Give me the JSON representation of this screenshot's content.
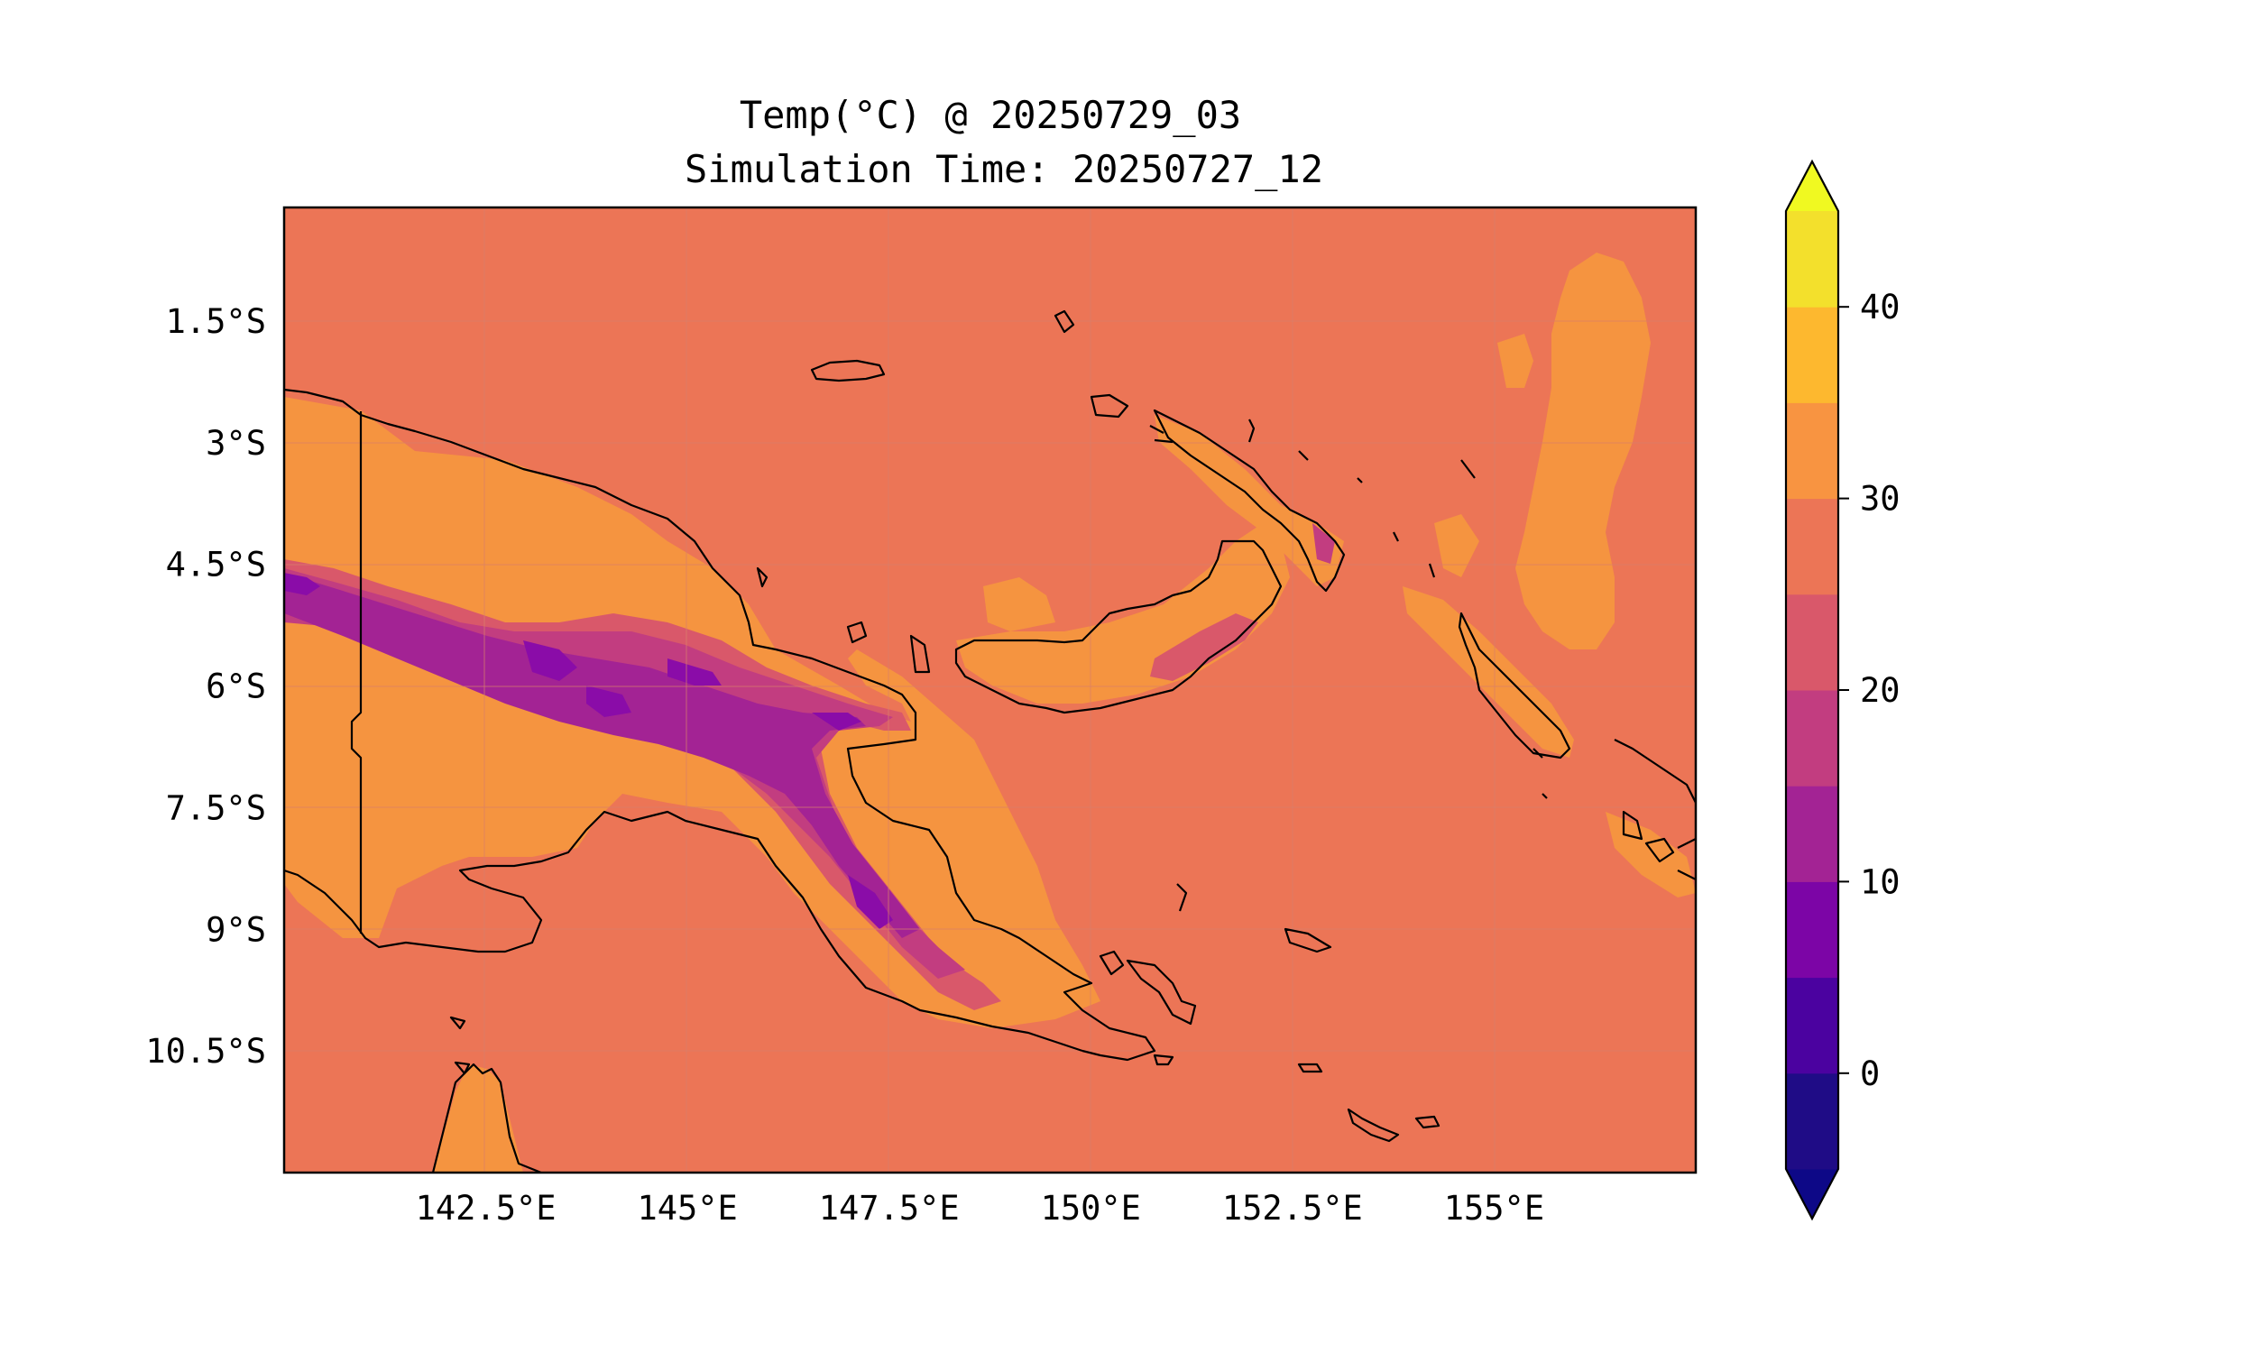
{
  "chart_data": {
    "type": "heatmap",
    "title": "Temp(°C) @ 20250729_03",
    "subtitle": "Simulation Time: 20250727_12",
    "xlabel": "",
    "ylabel": "",
    "xlim": [
      140.0,
      157.5
    ],
    "ylim": [
      -12.0,
      -0.1
    ],
    "x_ticks": [
      {
        "value": 142.5,
        "label": "142.5°E"
      },
      {
        "value": 145.0,
        "label": "145°E"
      },
      {
        "value": 147.5,
        "label": "147.5°E"
      },
      {
        "value": 150.0,
        "label": "150°E"
      },
      {
        "value": 152.5,
        "label": "152.5°E"
      },
      {
        "value": 155.0,
        "label": "155°E"
      }
    ],
    "y_ticks": [
      {
        "value": -1.5,
        "label": "1.5°S"
      },
      {
        "value": -3.0,
        "label": "3°S"
      },
      {
        "value": -4.5,
        "label": "4.5°S"
      },
      {
        "value": -6.0,
        "label": "6°S"
      },
      {
        "value": -7.5,
        "label": "7.5°S"
      },
      {
        "value": -9.0,
        "label": "9°S"
      },
      {
        "value": -10.5,
        "label": "10.5°S"
      }
    ],
    "grid": true,
    "colorbar": {
      "position": "right",
      "extend": "both",
      "levels": [
        -5,
        0,
        5,
        10,
        15,
        20,
        25,
        30,
        35,
        40,
        45
      ],
      "colors": [
        "#1f0c86",
        "#4b02a0",
        "#7c05a6",
        "#a32394",
        "#c23d80",
        "#d9586a",
        "#ec7556",
        "#f89441",
        "#fdb82f",
        "#f3e02c"
      ],
      "under_color": "#0d0887",
      "over_color": "#f0f921",
      "ticks": [
        {
          "value": 0,
          "label": "0"
        },
        {
          "value": 10,
          "label": "10"
        },
        {
          "value": 20,
          "label": "20"
        },
        {
          "value": 30,
          "label": "30"
        },
        {
          "value": 40,
          "label": "40"
        }
      ]
    },
    "background_value_range": [
      25,
      30
    ],
    "colors": {
      "ocean": "#ec7556",
      "warm_land": "#f59440",
      "mid": "#d9586a",
      "cool": "#c23d80",
      "cold": "#a32394",
      "coldest": "#8a0ca8",
      "coastline": "#000000"
    }
  }
}
